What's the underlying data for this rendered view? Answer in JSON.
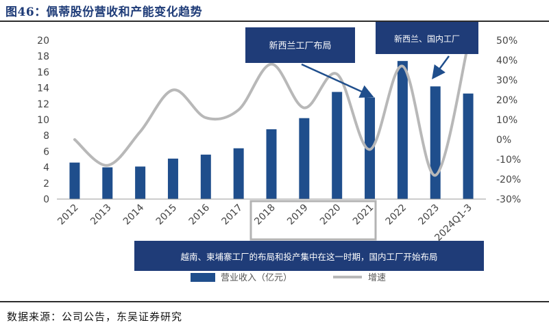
{
  "figure_title": "图46：佩蒂股份营收和产能变化趋势",
  "source": "数据来源：公司公告，东吴证券研究",
  "chart_data": {
    "type": "bar",
    "categories": [
      "2012",
      "2013",
      "2014",
      "2015",
      "2016",
      "2017",
      "2018",
      "2019",
      "2020",
      "2021",
      "2022",
      "2023",
      "2024Q1-3"
    ],
    "y_ticks": [
      "0",
      "2",
      "4",
      "6",
      "8",
      "10",
      "12",
      "14",
      "16",
      "18",
      "20"
    ],
    "y2_ticks": [
      "-30%",
      "-20%",
      "-10%",
      "0%",
      "10%",
      "20%",
      "30%",
      "40%",
      "50%"
    ],
    "ylim": [
      0,
      20
    ],
    "y2lim": [
      -30,
      50
    ],
    "grid": false,
    "legend_position": "bottom",
    "series": [
      {
        "name": "营业收入（亿元）",
        "type": "bar",
        "axis": "left",
        "color": "#1f4e8c",
        "values": [
          4.6,
          4.0,
          4.1,
          5.1,
          5.6,
          6.4,
          8.8,
          10.2,
          13.5,
          12.8,
          17.4,
          14.2,
          13.3
        ]
      },
      {
        "name": "增速",
        "type": "line",
        "axis": "right",
        "color": "#b8b8b8",
        "values": [
          0,
          -13,
          4,
          25,
          11,
          15,
          38,
          16,
          33,
          -5,
          37,
          -18,
          48
        ]
      }
    ],
    "annotations": [
      {
        "text": "新西兰工厂布局"
      },
      {
        "text": "新西兰、国内工厂"
      },
      {
        "text": "越南、柬埔寨工厂的布局和投产集中在这一时期，国内工厂开始布局"
      }
    ]
  }
}
